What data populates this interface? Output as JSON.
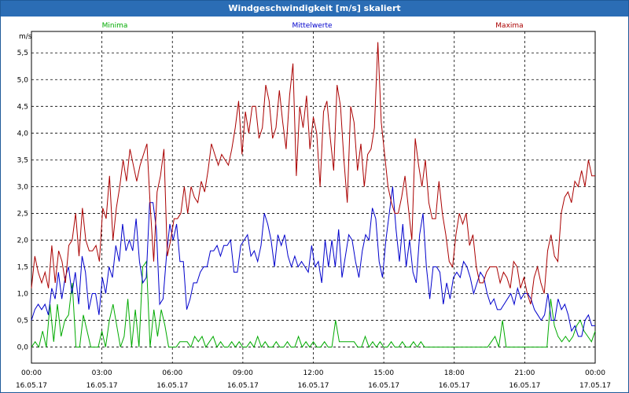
{
  "window": {
    "title": "Windgeschwindigkeit [m/s] skaliert"
  },
  "chart_data": {
    "type": "line",
    "title": "Windgeschwindigkeit [m/s] skaliert",
    "ylabel": "m/s",
    "ylim": [
      -0.3,
      5.9
    ],
    "xlim": [
      0,
      24
    ],
    "grid": true,
    "legend_placement": "top",
    "y_ticks": [
      "0,0",
      "0,5",
      "1,0",
      "1,5",
      "2,0",
      "2,5",
      "3,0",
      "3,5",
      "4,0",
      "4,5",
      "5,0",
      "5,5"
    ],
    "x_ticks": [
      {
        "time": "00:00",
        "date": "16.05.17"
      },
      {
        "time": "03:00",
        "date": "16.05.17"
      },
      {
        "time": "06:00",
        "date": "16.05.17"
      },
      {
        "time": "09:00",
        "date": "16.05.17"
      },
      {
        "time": "12:00",
        "date": "16.05.17"
      },
      {
        "time": "15:00",
        "date": "16.05.17"
      },
      {
        "time": "18:00",
        "date": "16.05.17"
      },
      {
        "time": "21:00",
        "date": "16.05.17"
      },
      {
        "time": "00:00",
        "date": "17.05.17"
      }
    ],
    "series": [
      {
        "name": "Minima",
        "color": "#00aa00",
        "values": [
          0.0,
          0.1,
          0.0,
          0.3,
          0.0,
          0.8,
          0.1,
          0.8,
          0.2,
          0.5,
          0.6,
          1.2,
          0.0,
          0.0,
          0.6,
          0.3,
          0.0,
          0.0,
          0.0,
          0.3,
          0.0,
          0.5,
          0.8,
          0.4,
          0.0,
          0.2,
          0.9,
          0.0,
          0.7,
          0.0,
          1.5,
          1.6,
          0.0,
          0.7,
          0.2,
          0.7,
          0.4,
          0.0,
          0.0,
          0.0,
          0.1,
          0.1,
          0.1,
          0.0,
          0.2,
          0.1,
          0.2,
          0.0,
          0.1,
          0.2,
          0.0,
          0.1,
          0.0,
          0.0,
          0.1,
          0.0,
          0.1,
          0.0,
          0.0,
          0.1,
          0.0,
          0.2,
          0.0,
          0.1,
          0.0,
          0.0,
          0.1,
          0.0,
          0.0,
          0.1,
          0.0,
          0.0,
          0.2,
          0.0,
          0.1,
          0.0,
          0.1,
          0.0,
          0.0,
          0.1,
          0.0,
          0.0,
          0.5,
          0.1,
          0.1,
          0.1,
          0.1,
          0.1,
          0.0,
          0.0,
          0.2,
          0.0,
          0.1,
          0.0,
          0.1,
          0.0,
          0.0,
          0.1,
          0.0,
          0.0,
          0.1,
          0.0,
          0.0,
          0.1,
          0.0,
          0.1,
          0.0,
          0.0,
          0.0,
          0.0,
          0.0,
          0.0,
          0.0,
          0.0,
          0.0,
          0.0,
          0.0,
          0.0,
          0.0,
          0.0,
          0.0,
          0.0,
          0.0,
          0.0,
          0.1,
          0.2,
          0.0,
          0.5,
          0.0,
          0.0,
          0.0,
          0.0,
          0.0,
          0.0,
          0.0,
          0.0,
          0.0,
          0.0,
          0.0,
          0.0,
          0.9,
          0.4,
          0.2,
          0.1,
          0.2,
          0.1,
          0.2,
          0.4,
          0.5,
          0.3,
          0.2,
          0.1,
          0.3
        ]
      },
      {
        "name": "Mittelwerte",
        "color": "#0000cc",
        "values": [
          0.5,
          0.7,
          0.8,
          0.7,
          0.8,
          0.6,
          1.1,
          0.9,
          1.4,
          0.9,
          1.3,
          1.5,
          1.0,
          1.4,
          0.8,
          1.7,
          1.4,
          0.7,
          1.0,
          1.0,
          0.6,
          1.3,
          1.0,
          1.5,
          1.3,
          1.9,
          1.6,
          2.3,
          1.8,
          2.0,
          1.8,
          2.4,
          1.6,
          1.2,
          1.3,
          2.7,
          2.7,
          2.2,
          0.8,
          0.9,
          1.7,
          2.3,
          2.0,
          2.3,
          1.6,
          1.6,
          0.7,
          0.9,
          1.2,
          1.2,
          1.4,
          1.5,
          1.5,
          1.8,
          1.8,
          1.9,
          1.7,
          1.9,
          1.9,
          2.0,
          1.4,
          1.4,
          1.9,
          2.0,
          2.1,
          1.7,
          1.8,
          1.6,
          1.9,
          2.5,
          2.3,
          2.0,
          1.5,
          2.1,
          1.9,
          2.1,
          1.7,
          1.5,
          1.7,
          1.5,
          1.6,
          1.5,
          1.4,
          1.9,
          1.5,
          1.6,
          1.2,
          2.0,
          1.5,
          2.0,
          1.5,
          2.2,
          1.3,
          1.7,
          2.1,
          2.0,
          1.6,
          1.3,
          1.8,
          2.1,
          2.0,
          2.6,
          2.4,
          1.6,
          1.3,
          2.0,
          2.5,
          3.0,
          2.2,
          1.6,
          2.3,
          1.5,
          2.0,
          1.4,
          1.2,
          2.1,
          2.5,
          1.5,
          0.9,
          1.5,
          1.5,
          1.4,
          0.8,
          1.2,
          0.9,
          1.3,
          1.4,
          1.3,
          1.6,
          1.5,
          1.3,
          1.0,
          1.2,
          1.4,
          1.3,
          1.0,
          0.8,
          0.9,
          0.7,
          0.7,
          0.8,
          0.9,
          1.0,
          0.8,
          1.1,
          0.9,
          1.0,
          1.0,
          0.9,
          0.7,
          0.6,
          0.5,
          0.6,
          1.0,
          0.5,
          0.5,
          0.9,
          0.7,
          0.8,
          0.6,
          0.3,
          0.4,
          0.2,
          0.2,
          0.5,
          0.6,
          0.4,
          0.4
        ]
      },
      {
        "name": "Maxima",
        "color": "#aa0000",
        "values": [
          1.1,
          1.7,
          1.4,
          1.2,
          1.4,
          1.1,
          1.9,
          1.2,
          1.8,
          1.6,
          1.2,
          1.9,
          2.0,
          2.5,
          1.7,
          2.6,
          2.0,
          1.8,
          1.8,
          1.9,
          1.6,
          2.6,
          2.4,
          3.2,
          2.0,
          2.6,
          3.0,
          3.5,
          3.1,
          3.7,
          3.4,
          3.1,
          3.4,
          3.6,
          3.8,
          2.6,
          1.6,
          2.9,
          3.2,
          3.7,
          1.7,
          2.0,
          2.4,
          2.4,
          2.5,
          3.0,
          2.5,
          3.0,
          2.8,
          2.7,
          3.1,
          2.9,
          3.3,
          3.8,
          3.6,
          3.4,
          3.6,
          3.5,
          3.4,
          3.7,
          4.1,
          4.6,
          3.6,
          4.4,
          4.0,
          4.5,
          4.5,
          3.9,
          4.1,
          4.9,
          4.6,
          3.9,
          4.1,
          4.8,
          4.2,
          3.7,
          4.7,
          5.3,
          3.2,
          4.5,
          4.1,
          4.7,
          3.7,
          4.3,
          4.0,
          3.0,
          4.4,
          4.6,
          3.9,
          3.3,
          4.9,
          4.5,
          3.5,
          2.7,
          4.5,
          4.2,
          3.3,
          3.8,
          3.0,
          3.6,
          3.7,
          4.1,
          5.7,
          4.2,
          3.6,
          3.0,
          2.7,
          2.5,
          2.5,
          2.8,
          3.2,
          2.6,
          2.0,
          3.9,
          3.4,
          3.0,
          3.5,
          2.7,
          2.4,
          2.4,
          3.1,
          2.5,
          2.1,
          1.6,
          1.5,
          2.1,
          2.5,
          2.3,
          2.5,
          1.9,
          2.1,
          1.5,
          1.2,
          1.2,
          1.4,
          1.5,
          1.5,
          1.5,
          1.2,
          1.4,
          1.3,
          1.1,
          1.6,
          1.5,
          1.1,
          1.3,
          1.0,
          0.8,
          1.3,
          1.5,
          1.2,
          1.0,
          1.8,
          2.1,
          1.7,
          1.6,
          2.5,
          2.8,
          2.9,
          2.7,
          3.1,
          3.0,
          3.3,
          3.0,
          3.5,
          3.2,
          3.2
        ]
      }
    ]
  }
}
